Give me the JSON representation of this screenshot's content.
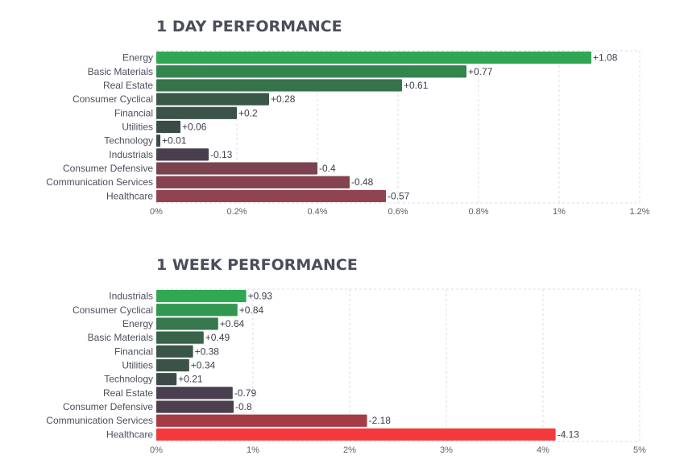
{
  "chart_data": [
    {
      "type": "bar",
      "orientation": "horizontal",
      "title": "1 DAY PERFORMANCE",
      "categories": [
        "Energy",
        "Basic Materials",
        "Real Estate",
        "Consumer Cyclical",
        "Financial",
        "Utilities",
        "Technology",
        "Industrials",
        "Consumer Defensive",
        "Communication Services",
        "Healthcare"
      ],
      "values": [
        1.08,
        0.77,
        0.61,
        0.28,
        0.2,
        0.06,
        0.01,
        -0.13,
        -0.4,
        -0.48,
        -0.57
      ],
      "value_labels": [
        "+1.08",
        "+0.77",
        "+0.61",
        "+0.28",
        "+0.2",
        "+0.06",
        "+0.01",
        "-0.13",
        "-0.4",
        "-0.48",
        "-0.57"
      ],
      "bar_magnitude": "absolute value",
      "xlim": [
        0,
        1.2
      ],
      "xticks": [
        "0%",
        "0.2%",
        "0.4%",
        "0.6%",
        "0.8%",
        "1%",
        "1.2%"
      ],
      "grid": true,
      "colors": {
        "positive_strong": "#30a752",
        "positive_weak": "#3b4a46",
        "negative_weak": "#4a3f4e",
        "negative_strong": "#8f4450"
      }
    },
    {
      "type": "bar",
      "orientation": "horizontal",
      "title": "1 WEEK PERFORMANCE",
      "categories": [
        "Industrials",
        "Consumer Cyclical",
        "Energy",
        "Basic Materials",
        "Financial",
        "Utilities",
        "Technology",
        "Real Estate",
        "Consumer Defensive",
        "Communication Services",
        "Healthcare"
      ],
      "values": [
        0.93,
        0.84,
        0.64,
        0.49,
        0.38,
        0.34,
        0.21,
        -0.79,
        -0.8,
        -2.18,
        -4.13
      ],
      "value_labels": [
        "+0.93",
        "+0.84",
        "+0.64",
        "+0.49",
        "+0.38",
        "+0.34",
        "+0.21",
        "-0.79",
        "-0.8",
        "-2.18",
        "-4.13"
      ],
      "bar_magnitude": "absolute value",
      "xlim": [
        0,
        5
      ],
      "xticks": [
        "0%",
        "1%",
        "2%",
        "3%",
        "4%",
        "5%"
      ],
      "grid": true,
      "colors": {
        "positive_strong": "#30a752",
        "positive_weak": "#3b4a46",
        "negative_weak": "#4a3f4e",
        "negative_strong": "#f23a3d"
      }
    }
  ]
}
